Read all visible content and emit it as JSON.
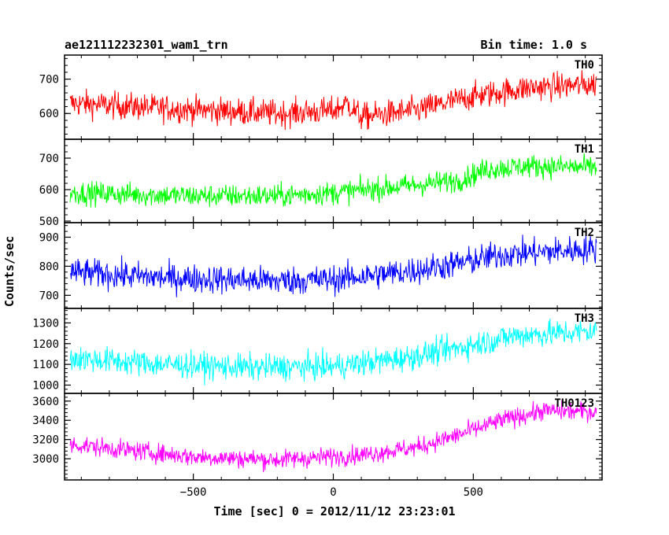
{
  "chart_data": {
    "type": "line",
    "title_left": "ae121112232301_wam1_trn",
    "title_right": "Bin time: 1.0 s",
    "xlabel": "Time [sec] 0 = 2012/11/12 23:23:01",
    "ylabel": "Counts/sec",
    "xlim": [
      -960,
      960
    ],
    "x_ticks": [
      -500,
      0,
      500
    ],
    "x_tick_labels": [
      "−500",
      "0",
      "500"
    ],
    "x_range": [
      -940,
      940
    ],
    "bin_time": 1.0,
    "grid": false,
    "panels": [
      {
        "name": "TH0",
        "color": "#ff0000",
        "ylim": [
          525,
          770
        ],
        "y_ticks": [
          600,
          700
        ],
        "noise_amplitude": 28,
        "trend": [
          [
            -940,
            630
          ],
          [
            -600,
            615
          ],
          [
            -200,
            600
          ],
          [
            0,
            608
          ],
          [
            50,
            630
          ],
          [
            100,
            590
          ],
          [
            300,
            610
          ],
          [
            500,
            650
          ],
          [
            700,
            675
          ],
          [
            940,
            685
          ]
        ]
      },
      {
        "name": "TH1",
        "color": "#00ff00",
        "ylim": [
          495,
          760
        ],
        "y_ticks": [
          500,
          600,
          700
        ],
        "noise_amplitude": 26,
        "trend": [
          [
            -940,
            590
          ],
          [
            -500,
            580
          ],
          [
            -200,
            580
          ],
          [
            0,
            590
          ],
          [
            300,
            615
          ],
          [
            450,
            630
          ],
          [
            550,
            665
          ],
          [
            700,
            675
          ],
          [
            940,
            670
          ]
        ]
      },
      {
        "name": "TH2",
        "color": "#0000ff",
        "ylim": [
          655,
          950
        ],
        "y_ticks": [
          700,
          800,
          900
        ],
        "noise_amplitude": 35,
        "trend": [
          [
            -940,
            780
          ],
          [
            -600,
            760
          ],
          [
            -200,
            750
          ],
          [
            0,
            755
          ],
          [
            250,
            780
          ],
          [
            450,
            810
          ],
          [
            600,
            840
          ],
          [
            940,
            860
          ]
        ]
      },
      {
        "name": "TH3",
        "color": "#00ffff",
        "ylim": [
          960,
          1370
        ],
        "y_ticks": [
          1000,
          1100,
          1200,
          1300
        ],
        "noise_amplitude": 45,
        "trend": [
          [
            -940,
            1130
          ],
          [
            -600,
            1100
          ],
          [
            -300,
            1085
          ],
          [
            0,
            1090
          ],
          [
            250,
            1130
          ],
          [
            450,
            1180
          ],
          [
            650,
            1240
          ],
          [
            940,
            1260
          ]
        ]
      },
      {
        "name": "TH0123",
        "color": "#ff00ff",
        "ylim": [
          2780,
          3680
        ],
        "y_ticks": [
          3000,
          3200,
          3400,
          3600
        ],
        "noise_amplitude": 70,
        "trend": [
          [
            -940,
            3150
          ],
          [
            -500,
            3020
          ],
          [
            -200,
            2990
          ],
          [
            100,
            3040
          ],
          [
            300,
            3120
          ],
          [
            450,
            3250
          ],
          [
            600,
            3400
          ],
          [
            750,
            3500
          ],
          [
            940,
            3490
          ]
        ]
      }
    ]
  }
}
